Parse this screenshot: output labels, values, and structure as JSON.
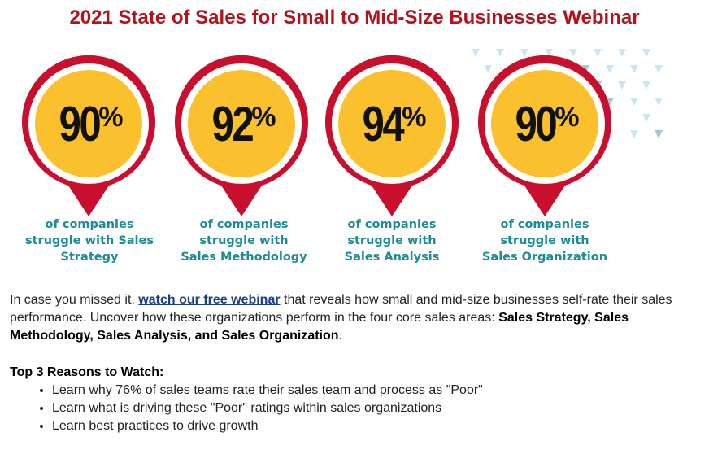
{
  "title": "2021 State of Sales for Small to Mid-Size Businesses Webinar",
  "stats": [
    {
      "value": "90",
      "unit": "%",
      "caption_lines": [
        "of companies",
        "struggle with Sales",
        "Strategy"
      ]
    },
    {
      "value": "92",
      "unit": "%",
      "caption_lines": [
        "of companies",
        "struggle with",
        "Sales Methodology"
      ]
    },
    {
      "value": "94",
      "unit": "%",
      "caption_lines": [
        "of companies",
        "struggle with",
        "Sales Analysis"
      ]
    },
    {
      "value": "90",
      "unit": "%",
      "caption_lines": [
        "of companies",
        "struggle with",
        "Sales Organization"
      ]
    }
  ],
  "intro": {
    "prefix": "In case you missed it, ",
    "link_text": "watch our free webinar",
    "middle": " that reveals how small and mid-size businesses self-rate their sales performance. Uncover how these organizations perform in the four core sales areas: ",
    "bold_areas": "Sales Strategy, Sales Methodology, Sales Analysis, and Sales Organization",
    "suffix": "."
  },
  "reasons": {
    "heading": "Top 3 Reasons to Watch:",
    "items": [
      "Learn why 76% of sales teams rate their sales team and process as \"Poor\"",
      "Learn what is driving these \"Poor\" ratings within sales organizations",
      "Learn best practices to drive growth"
    ]
  },
  "colors": {
    "title": "#b3131b",
    "pin_red": "#c8102e",
    "pin_yellow": "#fbc02d",
    "caption_teal": "#1d8c94",
    "link": "#1a3d8f"
  }
}
